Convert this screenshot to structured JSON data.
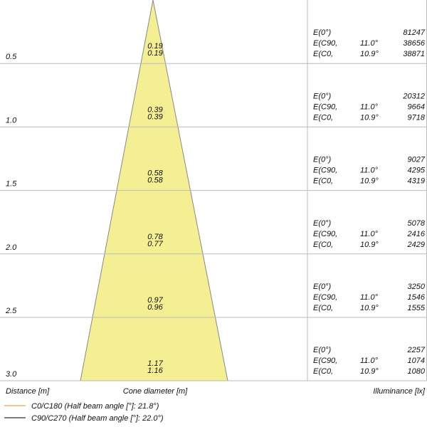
{
  "rows": [
    {
      "distance": "0.5",
      "diameter": [
        "0.19",
        "0.19"
      ],
      "illuminance": [
        {
          "label": "E(0°)",
          "angle": null,
          "value": "81247"
        },
        {
          "label": "E(C90,",
          "angle": "11.0°",
          "value": "38656"
        },
        {
          "label": "E(C0,",
          "angle": "10.9°",
          "value": "38871"
        }
      ]
    },
    {
      "distance": "1.0",
      "diameter": [
        "0.39",
        "0.39"
      ],
      "illuminance": [
        {
          "label": "E(0°)",
          "angle": null,
          "value": "20312"
        },
        {
          "label": "E(C90,",
          "angle": "11.0°",
          "value": "9664"
        },
        {
          "label": "E(C0,",
          "angle": "10.9°",
          "value": "9718"
        }
      ]
    },
    {
      "distance": "1.5",
      "diameter": [
        "0.58",
        "0.58"
      ],
      "illuminance": [
        {
          "label": "E(0°)",
          "angle": null,
          "value": "9027"
        },
        {
          "label": "E(C90,",
          "angle": "11.0°",
          "value": "4295"
        },
        {
          "label": "E(C0,",
          "angle": "10.9°",
          "value": "4319"
        }
      ]
    },
    {
      "distance": "2.0",
      "diameter": [
        "0.78",
        "0.77"
      ],
      "illuminance": [
        {
          "label": "E(0°)",
          "angle": null,
          "value": "5078"
        },
        {
          "label": "E(C90,",
          "angle": "11.0°",
          "value": "2416"
        },
        {
          "label": "E(C0,",
          "angle": "10.9°",
          "value": "2429"
        }
      ]
    },
    {
      "distance": "2.5",
      "diameter": [
        "0.97",
        "0.96"
      ],
      "illuminance": [
        {
          "label": "E(0°)",
          "angle": null,
          "value": "3250"
        },
        {
          "label": "E(C90,",
          "angle": "11.0°",
          "value": "1546"
        },
        {
          "label": "E(C0,",
          "angle": "10.9°",
          "value": "1555"
        }
      ]
    },
    {
      "distance": "3.0",
      "diameter": [
        "1.17",
        "1.16"
      ],
      "illuminance": [
        {
          "label": "E(0°)",
          "angle": null,
          "value": "2257"
        },
        {
          "label": "E(C90,",
          "angle": "11.0°",
          "value": "1074"
        },
        {
          "label": "E(C0,",
          "angle": "10.9°",
          "value": "1080"
        }
      ]
    }
  ],
  "footer": {
    "distance": "Distance [m]",
    "diameter": "Cone diameter [m]",
    "illuminance": "Illuminance [lx]"
  },
  "legend": [
    {
      "label": "C0/C180 (Half beam angle [°]: 21.8°)",
      "color": "#f0a040"
    },
    {
      "label": "C90/C270 (Half beam angle [°]: 22.0°)",
      "color": "#333333"
    }
  ]
}
